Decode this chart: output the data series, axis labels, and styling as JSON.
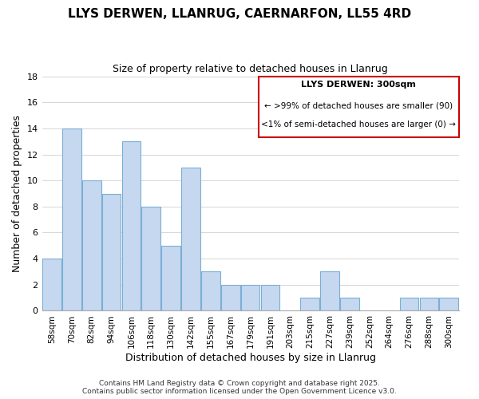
{
  "title": "LLYS DERWEN, LLANRUG, CAERNARFON, LL55 4RD",
  "subtitle": "Size of property relative to detached houses in Llanrug",
  "xlabel": "Distribution of detached houses by size in Llanrug",
  "ylabel": "Number of detached properties",
  "bar_color": "#c5d8f0",
  "bar_edge_color": "#7bafd4",
  "categories": [
    "58sqm",
    "70sqm",
    "82sqm",
    "94sqm",
    "106sqm",
    "118sqm",
    "130sqm",
    "142sqm",
    "155sqm",
    "167sqm",
    "179sqm",
    "191sqm",
    "203sqm",
    "215sqm",
    "227sqm",
    "239sqm",
    "252sqm",
    "264sqm",
    "276sqm",
    "288sqm",
    "300sqm"
  ],
  "values": [
    4,
    14,
    10,
    9,
    13,
    8,
    5,
    11,
    3,
    2,
    2,
    2,
    0,
    1,
    3,
    1,
    0,
    0,
    1,
    1,
    1
  ],
  "ylim": [
    0,
    18
  ],
  "yticks": [
    0,
    2,
    4,
    6,
    8,
    10,
    12,
    14,
    16,
    18
  ],
  "legend_title": "LLYS DERWEN: 300sqm",
  "legend_line1": "← >99% of detached houses are smaller (90)",
  "legend_line2": "<1% of semi-detached houses are larger (0) →",
  "legend_box_color": "#cc0000",
  "footer_line1": "Contains HM Land Registry data © Crown copyright and database right 2025.",
  "footer_line2": "Contains public sector information licensed under the Open Government Licence v3.0.",
  "grid_color": "#d0d0d0",
  "background_color": "#ffffff"
}
